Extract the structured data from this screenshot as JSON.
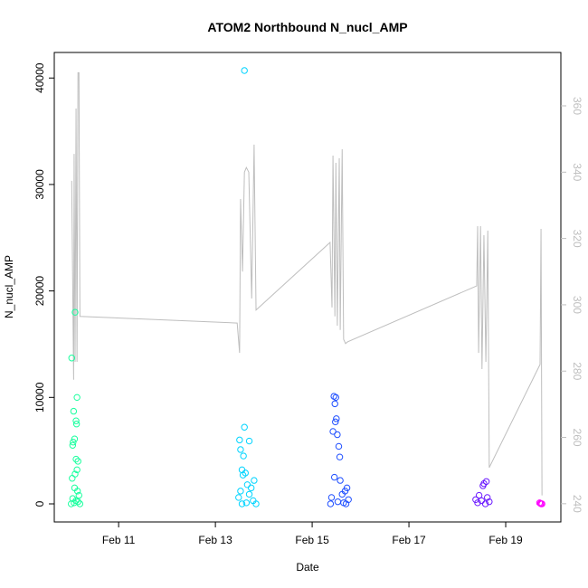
{
  "chart_data": {
    "type": "scatter",
    "title": "ATOM2 Northbound N_nucl_AMP",
    "xlabel": "Date",
    "ylabel": "N_nucl_AMP",
    "xlim": [
      9.67,
      20.14
    ],
    "xticks": [
      {
        "value": 11,
        "label": "Feb 11"
      },
      {
        "value": 13,
        "label": "Feb 13"
      },
      {
        "value": 15,
        "label": "Feb 15"
      },
      {
        "value": 17,
        "label": "Feb 17"
      },
      {
        "value": 19,
        "label": "Feb 19"
      }
    ],
    "ylim": [
      -1700,
      42400
    ],
    "yticks": [
      0,
      10000,
      20000,
      30000,
      40000
    ],
    "y2lim": [
      234.5,
      376.1
    ],
    "y2ticks": [
      240,
      260,
      280,
      300,
      320,
      340,
      360
    ],
    "series": [
      {
        "color": "#19FF9E",
        "x": [
          10.03,
          10.1,
          10.14,
          10.07,
          10.12,
          10.13,
          10.09,
          10.06,
          10.05,
          10.12,
          10.16,
          10.14,
          10.1,
          10.04,
          10.09,
          10.15,
          10.18,
          10.05,
          10.12,
          10.08,
          10.02,
          10.2,
          10.16
        ],
        "values": [
          13700,
          18000,
          10000,
          8700,
          7800,
          7500,
          6100,
          5800,
          5500,
          4200,
          4000,
          3200,
          2800,
          2400,
          1500,
          1200,
          800,
          500,
          300,
          100,
          0,
          0,
          200
        ]
      },
      {
        "color": "#00D4FF",
        "x": [
          13.6,
          13.6,
          13.5,
          13.7,
          13.52,
          13.58,
          13.55,
          13.62,
          13.57,
          13.8,
          13.66,
          13.74,
          13.52,
          13.7,
          13.48,
          13.78,
          13.64,
          13.84,
          13.55
        ],
        "values": [
          40700,
          7200,
          6000,
          5900,
          5100,
          4500,
          3200,
          2900,
          2700,
          2200,
          1800,
          1500,
          1200,
          900,
          600,
          300,
          100,
          0,
          0
        ]
      },
      {
        "color": "#1F4FFF",
        "x": [
          15.45,
          15.49,
          15.47,
          15.5,
          15.48,
          15.43,
          15.52,
          15.55,
          15.57,
          15.46,
          15.58,
          15.72,
          15.68,
          15.62,
          15.4,
          15.75,
          15.53,
          15.65,
          15.38,
          15.7
        ],
        "values": [
          10100,
          10000,
          9400,
          8000,
          7700,
          6800,
          6500,
          5400,
          4400,
          2500,
          2200,
          1500,
          1200,
          900,
          600,
          400,
          200,
          100,
          0,
          0
        ]
      },
      {
        "color": "#6B19FF",
        "x": [
          18.6,
          18.55,
          18.53,
          18.45,
          18.62,
          18.38,
          18.5,
          18.66,
          18.42,
          18.58
        ],
        "values": [
          2100,
          1900,
          1700,
          800,
          600,
          400,
          300,
          200,
          100,
          0
        ]
      },
      {
        "color": "#FF00FF",
        "x": [
          19.7,
          19.72,
          19.75,
          19.73
        ],
        "values": [
          100,
          50,
          0,
          0
        ]
      },
      {
        "type": "line",
        "axis": "y2",
        "color": "#BEBEBE",
        "x": [
          10.03,
          10.07,
          10.08,
          10.1,
          10.12,
          10.14,
          10.16,
          10.18,
          10.2,
          13.45,
          13.5,
          13.52,
          13.56,
          13.6,
          13.64,
          13.69,
          13.75,
          13.8,
          13.84,
          15.37,
          15.41,
          15.43,
          15.47,
          15.49,
          15.52,
          15.56,
          15.58,
          15.62,
          15.65,
          15.69,
          15.73,
          18.4,
          18.42,
          18.44,
          18.48,
          18.51,
          18.55,
          18.59,
          18.63,
          18.66,
          18.68,
          19.71,
          19.73,
          19.75
        ],
        "values": [
          337.4,
          277.4,
          345.5,
          282.8,
          359.2,
          282.8,
          370,
          370,
          296.5,
          294.5,
          285.5,
          331.9,
          310,
          340,
          341.4,
          340,
          301.9,
          348.3,
          298.4,
          318.8,
          299.2,
          345,
          296.5,
          342.8,
          293.7,
          344.2,
          292.4,
          346.9,
          289.6,
          288.3,
          288.8,
          305.7,
          323.7,
          285.5,
          323.7,
          280.6,
          321,
          282.8,
          322.4,
          250.9,
          251.5,
          282,
          322.9,
          242.5
        ]
      }
    ]
  }
}
